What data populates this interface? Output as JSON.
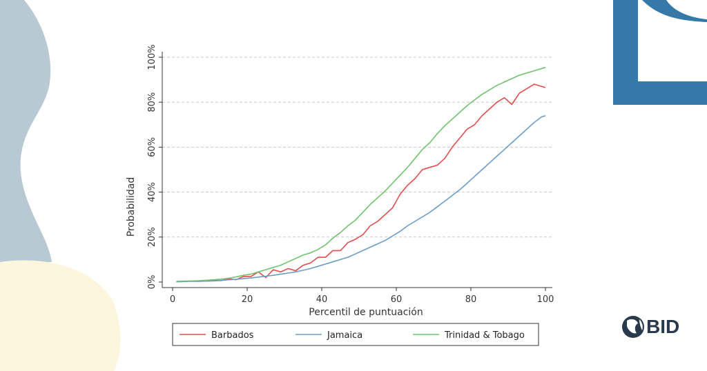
{
  "branding": {
    "logo_text": "BID",
    "colors": {
      "accent_blue": "#3579a8",
      "gray_blob": "#b9c9d3",
      "cream_blob": "#fbf6dd"
    }
  },
  "chart_data": {
    "type": "line",
    "xlabel": "Percentil de puntuación",
    "ylabel": "Probabilidad",
    "xlim": [
      0,
      100
    ],
    "ylim": [
      0,
      100
    ],
    "x_ticks": [
      0,
      20,
      40,
      60,
      80,
      100
    ],
    "y_ticks": [
      0,
      20,
      40,
      60,
      80,
      100
    ],
    "y_tick_labels": [
      "0%",
      "20%",
      "40%",
      "60%",
      "80%",
      "100%"
    ],
    "grid": "horizontal dashed",
    "legend": "bottom",
    "x": [
      1,
      3,
      5,
      7,
      9,
      11,
      13,
      15,
      17,
      19,
      21,
      23,
      25,
      27,
      29,
      31,
      33,
      35,
      37,
      39,
      41,
      43,
      45,
      47,
      49,
      51,
      53,
      55,
      57,
      59,
      61,
      63,
      65,
      67,
      69,
      71,
      73,
      75,
      77,
      79,
      81,
      83,
      85,
      87,
      89,
      91,
      93,
      95,
      97,
      99,
      100
    ],
    "series": [
      {
        "name": "Barbados",
        "color": "#e24b4b",
        "values": [
          0.2,
          0.3,
          0.4,
          0.3,
          0.5,
          0.8,
          0.6,
          1.5,
          1,
          2.5,
          2.5,
          4.5,
          2,
          5.5,
          4.5,
          6,
          5,
          7.5,
          8.5,
          11,
          11,
          14,
          14,
          17.5,
          19,
          21,
          25,
          27,
          30,
          33,
          39,
          43,
          46,
          50,
          51,
          52,
          55,
          60,
          64,
          68,
          70,
          74,
          77,
          80,
          82,
          79,
          84,
          86,
          88,
          87,
          86.5
        ]
      },
      {
        "name": "Jamaica",
        "color": "#6a9cc7",
        "values": [
          0.1,
          0.2,
          0.3,
          0.3,
          0.4,
          0.5,
          0.7,
          1,
          1.2,
          1.5,
          1.8,
          2.2,
          2.6,
          3,
          3.5,
          4,
          4.5,
          5.2,
          6,
          7,
          8,
          9,
          10,
          11,
          12.5,
          14,
          15.5,
          17,
          18.5,
          20.5,
          22.5,
          25,
          27,
          29,
          31,
          33.5,
          36,
          38.5,
          41,
          44,
          47,
          50,
          53,
          56,
          59,
          62,
          65,
          68,
          71,
          73.5,
          74
        ]
      },
      {
        "name": "Trinidad & Tobago",
        "color": "#6fc26f",
        "values": [
          0.3,
          0.4,
          0.5,
          0.6,
          0.8,
          1,
          1.3,
          1.7,
          2.3,
          3,
          3.5,
          4.5,
          5.5,
          6.5,
          7.5,
          9,
          10.5,
          12,
          13,
          14.5,
          16.5,
          19.5,
          22,
          25,
          27.5,
          31,
          34.5,
          37.5,
          40.5,
          44,
          47.5,
          51,
          55,
          59,
          62,
          66,
          69.5,
          72.5,
          75.5,
          78.5,
          81,
          83.5,
          85.5,
          87.5,
          89,
          90.5,
          92,
          93,
          94,
          95,
          95.5
        ]
      }
    ]
  }
}
